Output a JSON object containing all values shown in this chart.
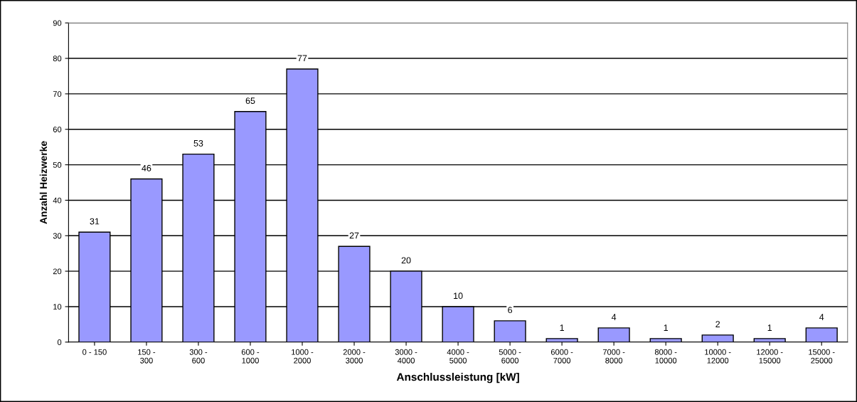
{
  "chart_data": {
    "type": "bar",
    "xlabel": "Anschlussleistung [kW]",
    "ylabel": "Anzahl Heizwerke",
    "categories": [
      "0 - 150",
      "150 -\n300",
      "300 -\n600",
      "600 -\n1000",
      "1000 -\n2000",
      "2000 -\n3000",
      "3000 -\n4000",
      "4000 -\n5000",
      "5000 -\n6000",
      "6000 -\n7000",
      "7000 -\n8000",
      "8000 -\n10000",
      "10000 -\n12000",
      "12000 -\n15000",
      "15000 -\n25000"
    ],
    "values": [
      31,
      46,
      53,
      65,
      77,
      27,
      20,
      10,
      6,
      1,
      4,
      1,
      2,
      1,
      4
    ],
    "color": "#9999ff",
    "ylim": [
      0,
      90
    ],
    "yticks": [
      0,
      10,
      20,
      30,
      40,
      50,
      60,
      70,
      80,
      90
    ],
    "grid": "y",
    "data_labels": true
  }
}
